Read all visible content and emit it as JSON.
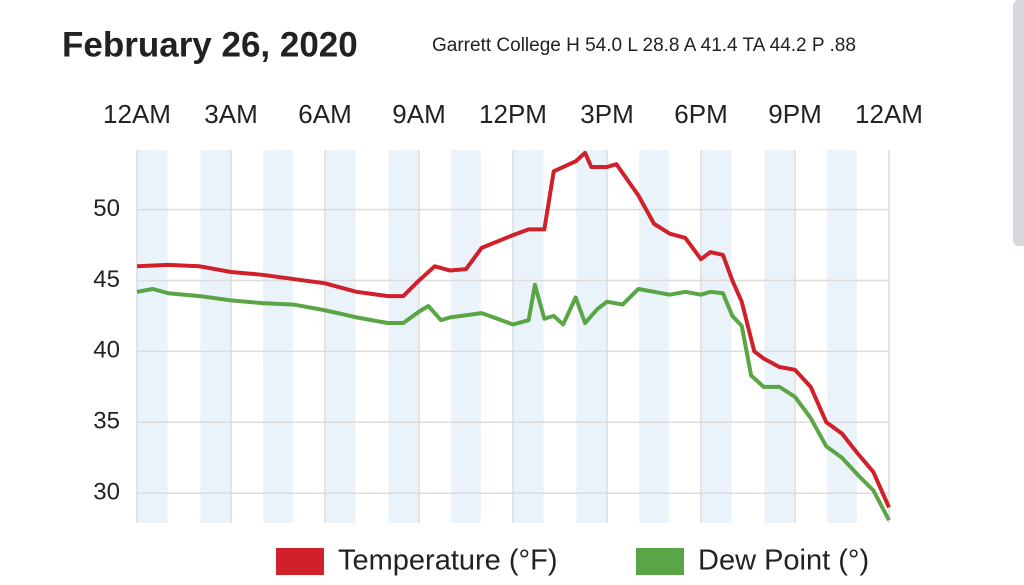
{
  "chart_data": {
    "type": "line",
    "title": "February 26, 2020",
    "subtitle": "Garrett College H 54.0 L 28.8 A 41.4 TA 44.2 P .88",
    "xlim": [
      0,
      24
    ],
    "xticks": [
      {
        "value": 0,
        "label": "12AM"
      },
      {
        "value": 3,
        "label": "3AM"
      },
      {
        "value": 6,
        "label": "6AM"
      },
      {
        "value": 9,
        "label": "9AM"
      },
      {
        "value": 12,
        "label": "12PM"
      },
      {
        "value": 15,
        "label": "3PM"
      },
      {
        "value": 18,
        "label": "6PM"
      },
      {
        "value": 21,
        "label": "9PM"
      },
      {
        "value": 24,
        "label": "12AM"
      }
    ],
    "ylim": [
      27.9,
      54.2
    ],
    "yticks": [
      30,
      35,
      40,
      45,
      50
    ],
    "grid": true,
    "series": [
      {
        "name": "Temperature (°F)",
        "color": "#d0202a",
        "x": [
          0,
          1,
          2,
          3,
          4,
          5,
          6,
          7,
          8,
          8.5,
          9,
          9.5,
          10,
          10.5,
          11,
          12,
          12.5,
          13,
          13.3,
          14,
          14.3,
          14.5,
          15,
          15.3,
          16,
          16.5,
          17,
          17.5,
          18,
          18.3,
          18.7,
          19,
          19.3,
          19.7,
          20,
          20.5,
          21,
          21.5,
          22,
          22.5,
          23,
          23.5,
          24
        ],
        "values": [
          46.0,
          46.1,
          46.0,
          45.6,
          45.4,
          45.1,
          44.8,
          44.2,
          43.9,
          43.9,
          45.0,
          46.0,
          45.7,
          45.8,
          47.3,
          48.2,
          48.6,
          48.6,
          52.7,
          53.4,
          54.0,
          53.0,
          53.0,
          53.2,
          51.0,
          49.0,
          48.3,
          48.0,
          46.5,
          47.0,
          46.8,
          45.0,
          43.5,
          40.0,
          39.5,
          38.9,
          38.7,
          37.5,
          35.0,
          34.2,
          32.8,
          31.5,
          29.0
        ]
      },
      {
        "name": "Dew Point (°)",
        "color": "#5aa545",
        "x": [
          0,
          0.5,
          1,
          2,
          3,
          4,
          5,
          6,
          7,
          8,
          8.5,
          9,
          9.3,
          9.7,
          10,
          11,
          11.5,
          12,
          12.5,
          12.7,
          13,
          13.3,
          13.6,
          14,
          14.3,
          14.7,
          15,
          15.5,
          16,
          16.5,
          17,
          17.5,
          18,
          18.3,
          18.7,
          19,
          19.3,
          19.6,
          20,
          20.5,
          21,
          21.5,
          22,
          22.5,
          23,
          23.5,
          24
        ],
        "values": [
          44.2,
          44.4,
          44.1,
          43.9,
          43.6,
          43.4,
          43.3,
          42.9,
          42.4,
          42.0,
          42.0,
          42.8,
          43.2,
          42.2,
          42.4,
          42.7,
          42.3,
          41.9,
          42.2,
          44.7,
          42.3,
          42.5,
          41.9,
          43.8,
          42.0,
          43.0,
          43.5,
          43.3,
          44.4,
          44.2,
          44.0,
          44.2,
          44.0,
          44.2,
          44.1,
          42.5,
          41.8,
          38.3,
          37.5,
          37.5,
          36.8,
          35.3,
          33.3,
          32.5,
          31.3,
          30.2,
          28.1
        ]
      }
    ]
  }
}
